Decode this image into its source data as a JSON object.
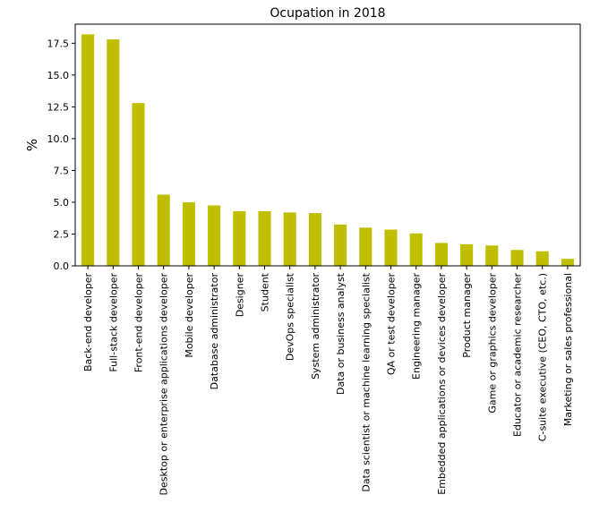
{
  "chart_data": {
    "type": "bar",
    "title": "Ocupation in 2018",
    "xlabel": "",
    "ylabel": "%",
    "ylim": [
      0,
      19
    ],
    "yticks": [
      0.0,
      2.5,
      5.0,
      7.5,
      10.0,
      12.5,
      15.0,
      17.5
    ],
    "ytick_labels": [
      "0.0",
      "2.5",
      "5.0",
      "7.5",
      "10.0",
      "12.5",
      "15.0",
      "17.5"
    ],
    "grid": false,
    "legend": "none",
    "bar_color": "#bfbf00",
    "categories": [
      "Back-end developer",
      "Full-stack developer",
      "Front-end developer",
      "Desktop or enterprise applications developer",
      "Mobile developer",
      "Database administrator",
      "Designer",
      "Student",
      "DevOps specialist",
      "System administrator",
      "Data or business analyst",
      "Data scientist or machine learning specialist",
      "QA or test developer",
      "Engineering manager",
      "Embedded applications or devices developer",
      "Product manager",
      "Game or graphics developer",
      "Educator or academic researcher",
      "C-suite executive (CEO, CTO, etc.)",
      "Marketing or sales professional"
    ],
    "values": [
      18.2,
      17.8,
      12.8,
      5.6,
      5.0,
      4.75,
      4.3,
      4.3,
      4.2,
      4.15,
      3.25,
      3.0,
      2.85,
      2.55,
      1.8,
      1.7,
      1.6,
      1.25,
      1.15,
      0.55
    ]
  }
}
